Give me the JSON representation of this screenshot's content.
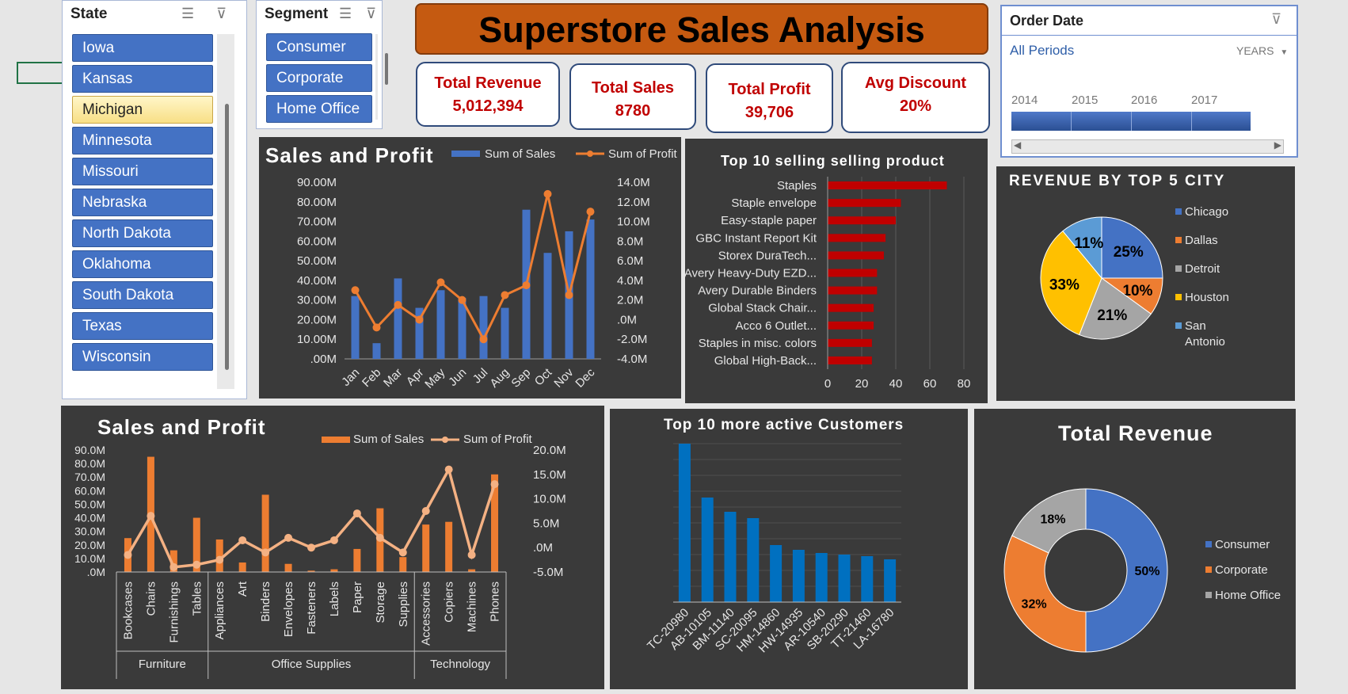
{
  "state_slicer": {
    "title": "State",
    "items": [
      {
        "label": "Iowa",
        "selected": false
      },
      {
        "label": "Kansas",
        "selected": false
      },
      {
        "label": "Michigan",
        "selected": true
      },
      {
        "label": "Minnesota",
        "selected": false
      },
      {
        "label": "Missouri",
        "selected": false
      },
      {
        "label": "Nebraska",
        "selected": false
      },
      {
        "label": "North Dakota",
        "selected": false
      },
      {
        "label": "Oklahoma",
        "selected": false
      },
      {
        "label": "South Dakota",
        "selected": false
      },
      {
        "label": "Texas",
        "selected": false
      },
      {
        "label": "Wisconsin",
        "selected": false
      }
    ]
  },
  "segment_slicer": {
    "title": "Segment",
    "items": [
      "Consumer",
      "Corporate",
      "Home Office"
    ]
  },
  "dashboard": {
    "title": "Superstore Sales Analysis"
  },
  "kpis": [
    {
      "label": "Total Revenue",
      "value": "5,012,394"
    },
    {
      "label": "Total Sales",
      "value": "8780"
    },
    {
      "label": "Total Profit",
      "value": "39,706"
    },
    {
      "label": "Avg Discount",
      "value": "20%"
    }
  ],
  "order_date": {
    "title": "Order Date",
    "period": "All Periods",
    "level": "YEARS",
    "years": [
      "2014",
      "2015",
      "2016",
      "2017"
    ]
  },
  "colors": {
    "blue": "#4472c4",
    "orange": "#ed7d31",
    "gray": "#a5a5a5",
    "yellow": "#ffc000",
    "lightblue": "#5b9bd5",
    "red": "#c00000",
    "cust_blue": "#0070c0",
    "panel": "#3a3a3a",
    "kpi_text": "#c00000",
    "banner": "#c55a11"
  },
  "chart_data": [
    {
      "id": "monthly",
      "type": "bar",
      "title": "Sales and Profit",
      "categories": [
        "Jan",
        "Feb",
        "Mar",
        "Apr",
        "May",
        "Jun",
        "Jul",
        "Aug",
        "Sep",
        "Oct",
        "Nov",
        "Dec"
      ],
      "series": [
        {
          "name": "Sum of Sales",
          "kind": "bar",
          "axis": "left",
          "values": [
            32,
            8,
            41,
            26,
            35,
            31,
            32,
            26,
            76,
            54,
            65,
            71
          ]
        },
        {
          "name": "Sum of Profit",
          "kind": "line",
          "axis": "right",
          "values": [
            3.0,
            -0.8,
            1.5,
            0.0,
            3.8,
            2.0,
            -2.0,
            2.5,
            3.5,
            12.8,
            2.5,
            11.0
          ]
        }
      ],
      "ylim_left": [
        0,
        90
      ],
      "ylim_right": [
        -4,
        14
      ],
      "left_ticks": [
        ".00M",
        "10.00M",
        "20.00M",
        "30.00M",
        "40.00M",
        "50.00M",
        "60.00M",
        "70.00M",
        "80.00M",
        "90.00M"
      ],
      "right_ticks": [
        "-4.0M",
        "-2.0M",
        ".0M",
        "2.0M",
        "4.0M",
        "6.0M",
        "8.0M",
        "10.0M",
        "12.0M",
        "14.0M"
      ]
    },
    {
      "id": "top_products",
      "type": "bar",
      "orientation": "horizontal",
      "title": "Top 10 selling selling product",
      "categories": [
        "Staples",
        "Staple envelope",
        "Easy-staple paper",
        "GBC Instant Report Kit",
        "Storex DuraTech...",
        "Avery Heavy-Duty EZD...",
        "Avery Durable Binders",
        "Global Stack Chair...",
        "Acco 6 Outlet...",
        "Staples in misc. colors",
        "Global High-Back..."
      ],
      "values": [
        70,
        43,
        40,
        34,
        33,
        29,
        29,
        27,
        27,
        26,
        26
      ],
      "xlim": [
        0,
        80
      ],
      "x_ticks": [
        "0",
        "20",
        "40",
        "60",
        "80"
      ]
    },
    {
      "id": "city_pie",
      "type": "pie",
      "title": "REVENUE BY TOP 5 CITY",
      "categories": [
        "Chicago",
        "Dallas",
        "Detroit",
        "Houston",
        "San Antonio"
      ],
      "values": [
        25,
        10,
        21,
        33,
        11
      ],
      "labels": [
        "25%",
        "10%",
        "21%",
        "33%",
        "11%"
      ],
      "legend": "right"
    },
    {
      "id": "category",
      "type": "bar",
      "title": "Sales and Profit",
      "groups": [
        {
          "name": "Furniture",
          "categories": [
            "Bookcases",
            "Chairs",
            "Furnishings",
            "Tables"
          ]
        },
        {
          "name": "Office Supplies",
          "categories": [
            "Appliances",
            "Art",
            "Binders",
            "Envelopes",
            "Fasteners",
            "Labels",
            "Paper",
            "Storage",
            "Supplies"
          ]
        },
        {
          "name": "Technology",
          "categories": [
            "Accessories",
            "Copiers",
            "Machines",
            "Phones"
          ]
        }
      ],
      "series": [
        {
          "name": "Sum of Sales",
          "kind": "bar",
          "axis": "left",
          "values": [
            25,
            85,
            16,
            40,
            24,
            7,
            57,
            6,
            1,
            2,
            17,
            47,
            11,
            35,
            37,
            2,
            72
          ]
        },
        {
          "name": "Sum of Profit",
          "kind": "line",
          "axis": "right",
          "values": [
            -1.5,
            6.5,
            -4.0,
            -3.5,
            -2.5,
            1.5,
            -1.0,
            2.0,
            0.0,
            1.5,
            7.0,
            2.0,
            -1.0,
            7.5,
            16.0,
            -1.5,
            13.0
          ]
        }
      ],
      "ylim_left": [
        0,
        90
      ],
      "ylim_right": [
        -5,
        20
      ],
      "left_ticks": [
        ".0M",
        "10.0M",
        "20.0M",
        "30.0M",
        "40.0M",
        "50.0M",
        "60.0M",
        "70.0M",
        "80.0M",
        "90.0M"
      ],
      "right_ticks": [
        "-5.0M",
        ".0M",
        "5.0M",
        "10.0M",
        "15.0M",
        "20.0M"
      ]
    },
    {
      "id": "top_customers",
      "type": "bar",
      "title": "Top 10 more active Customers",
      "categories": [
        "TC-20980",
        "AB-10105",
        "BM-11140",
        "SC-20095",
        "HM-14860",
        "HW-14935",
        "AR-10540",
        "SB-20290",
        "TT-21460",
        "LA-16780"
      ],
      "values": [
        100,
        66,
        57,
        53,
        36,
        33,
        31,
        30,
        29,
        27
      ],
      "ylim": [
        0,
        100
      ]
    },
    {
      "id": "segment_donut",
      "type": "pie",
      "title": "Total Revenue",
      "categories": [
        "Consumer",
        "Corporate",
        "Home Office"
      ],
      "values": [
        50,
        32,
        18
      ],
      "labels": [
        "50%",
        "32%",
        "18%"
      ],
      "legend": "right"
    }
  ]
}
